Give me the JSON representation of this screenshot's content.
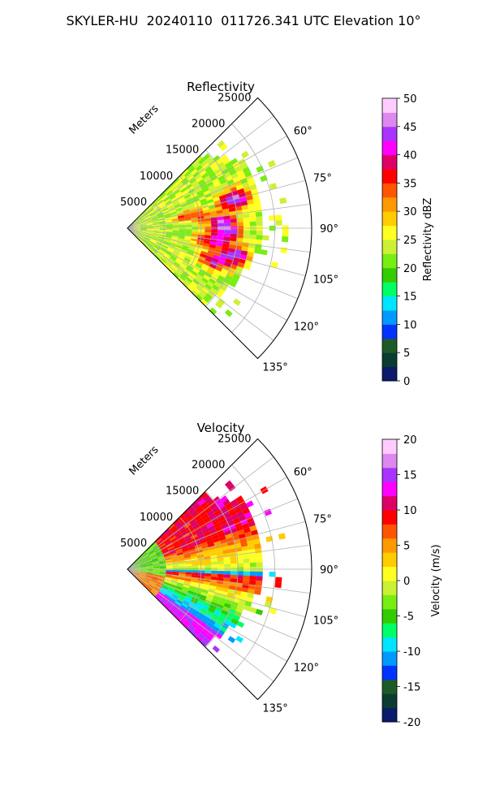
{
  "figure_title": "SKYLER-HU  20240110  011726.341 UTC Elevation 10°",
  "colors": {
    "reflectivity_scale": [
      "#0b1a6b",
      "#0a3c32",
      "#1e5a28",
      "#0033ff",
      "#0099ff",
      "#00e5ff",
      "#00ff66",
      "#33cc00",
      "#77ee11",
      "#ccf033",
      "#ffff22",
      "#ffcc00",
      "#ff9900",
      "#ff5500",
      "#ff0000",
      "#dd0066",
      "#ff00ff",
      "#aa33ff",
      "#dd88ee",
      "#ffccff"
    ],
    "velocity_scale": [
      "#0b1a6b",
      "#0a3c32",
      "#1e5a28",
      "#0033ff",
      "#0099ff",
      "#00e5ff",
      "#00ff66",
      "#33cc00",
      "#77ee11",
      "#ccf033",
      "#ffff22",
      "#ffcc00",
      "#ff9900",
      "#ff5500",
      "#ff0000",
      "#dd0066",
      "#ff00ff",
      "#aa33ff",
      "#dd88ee",
      "#ffccff"
    ]
  },
  "chart_data": [
    {
      "type": "heatmap",
      "projection": "polar-sector",
      "title": "Reflectivity",
      "range_label": "Meters",
      "range_ticks": [
        "5000",
        "10000",
        "15000",
        "20000",
        "25000"
      ],
      "range_max": 25000,
      "azimuth_ticks": [
        "60°",
        "75°",
        "90°",
        "105°",
        "120°",
        "135°"
      ],
      "azimuth_range_deg": [
        45,
        135
      ],
      "colorbar": {
        "label": "Reflectivity dBZ",
        "min": 0,
        "max": 50,
        "ticks": [
          "0",
          "5",
          "10",
          "15",
          "20",
          "25",
          "30",
          "35",
          "40",
          "45",
          "50"
        ]
      },
      "field_description": "mostly 20-30 dBZ with 35-45 dBZ cores"
    },
    {
      "type": "heatmap",
      "projection": "polar-sector",
      "title": "Velocity",
      "range_label": "Meters",
      "range_ticks": [
        "5000",
        "10000",
        "15000",
        "20000",
        "25000"
      ],
      "range_max": 25000,
      "azimuth_ticks": [
        "60°",
        "75°",
        "90°",
        "105°",
        "120°",
        "135°"
      ],
      "azimuth_range_deg": [
        45,
        135
      ],
      "colorbar": {
        "label": "Velocity (m/s)",
        "min": -20,
        "max": 20,
        "ticks": [
          "-20",
          "-15",
          "-10",
          "-5",
          "0",
          "5",
          "10",
          "15",
          "20"
        ]
      },
      "field_description": "bands of outbound (+) and inbound (-) velocity"
    }
  ]
}
